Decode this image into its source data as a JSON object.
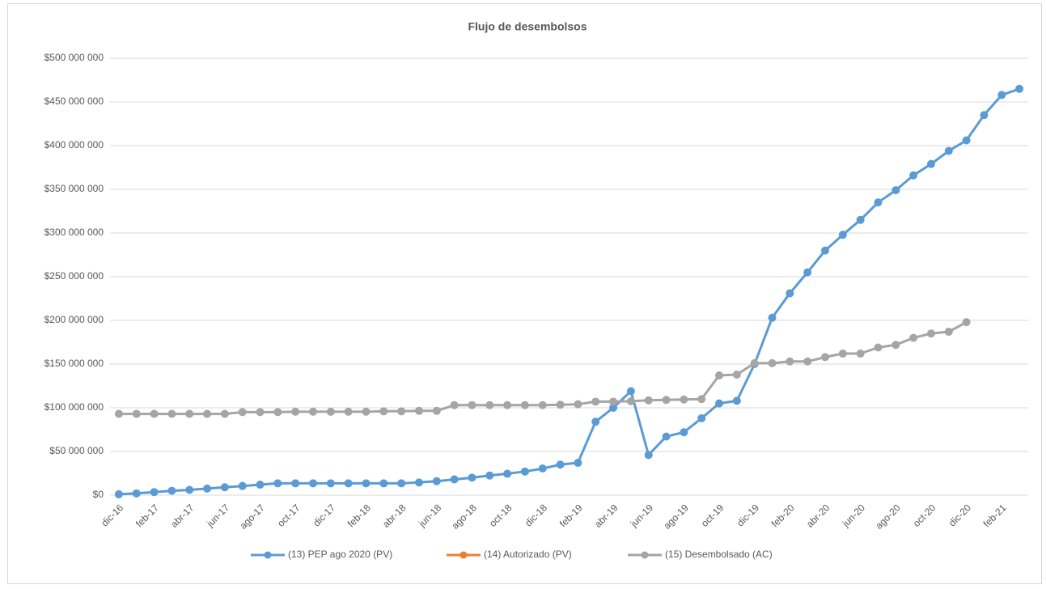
{
  "chart_data": {
    "type": "line",
    "title": "Flujo de desembolsos",
    "categories": [
      "dic-16",
      null,
      "feb-17",
      null,
      "abr-17",
      null,
      "jun-17",
      null,
      "ago-17",
      null,
      "oct-17",
      null,
      "dic-17",
      null,
      "feb-18",
      null,
      "abr-18",
      null,
      "jun-18",
      null,
      "ago-18",
      null,
      "oct-18",
      null,
      "dic-18",
      null,
      "feb-19",
      null,
      "abr-19",
      null,
      "jun-19",
      null,
      "ago-19",
      null,
      "oct-19",
      null,
      "dic-19",
      null,
      "feb-20",
      null,
      "abr-20",
      null,
      "jun-20",
      null,
      "ago-20",
      null,
      "oct-20",
      null,
      "dic-20",
      null,
      "feb-21",
      null
    ],
    "series": [
      {
        "name": "(13) PEP ago 2020 (PV)",
        "color": "#5b9bd5",
        "values": [
          1000000,
          2000000,
          3500000,
          5000000,
          6000000,
          7500000,
          9000000,
          10500000,
          12000000,
          13500000,
          13500000,
          13500000,
          13500000,
          13500000,
          13500000,
          13500000,
          13500000,
          14500000,
          16000000,
          18000000,
          20000000,
          22500000,
          24500000,
          27000000,
          30500000,
          35000000,
          37000000,
          84000000,
          100000000,
          119000000,
          46000000,
          67000000,
          72000000,
          88000000,
          105000000,
          108000000,
          150000000,
          203000000,
          231000000,
          255000000,
          280000000,
          298000000,
          315000000,
          335000000,
          349000000,
          366000000,
          379000000,
          394000000,
          406000000,
          435000000,
          458000000,
          465000000
        ]
      },
      {
        "name": "(14) Autorizado (PV)",
        "color": "#ed7d31",
        "values": [
          null,
          null,
          null,
          null,
          null,
          null,
          null,
          null,
          null,
          null,
          null,
          null,
          null,
          null,
          null,
          null,
          null,
          null,
          null,
          null,
          null,
          null,
          null,
          null,
          null,
          null,
          null,
          null,
          null,
          null,
          null,
          null,
          null,
          null,
          null,
          null,
          null,
          null,
          null,
          null,
          null,
          null,
          null,
          null,
          null,
          null,
          null,
          null,
          null,
          null,
          null,
          null
        ]
      },
      {
        "name": "(15) Desembolsado (AC)",
        "color": "#a5a5a5",
        "values": [
          93000000,
          93000000,
          93000000,
          93000000,
          93000000,
          93000000,
          93000000,
          95000000,
          95000000,
          95000000,
          95500000,
          95500000,
          95500000,
          95500000,
          95500000,
          96000000,
          96000000,
          96500000,
          96500000,
          103000000,
          103000000,
          103000000,
          103000000,
          103000000,
          103000000,
          103500000,
          104000000,
          107000000,
          107000000,
          107500000,
          108500000,
          109000000,
          109500000,
          110000000,
          137000000,
          138000000,
          151000000,
          151000000,
          153000000,
          153000000,
          158000000,
          162000000,
          162000000,
          169000000,
          172000000,
          180000000,
          185000000,
          187000000,
          198000000,
          null,
          null,
          null
        ]
      }
    ],
    "ylim": [
      0,
      500000000
    ],
    "yticks": [
      {
        "value": 0,
        "label": "$0"
      },
      {
        "value": 50000000,
        "label": "$50 000 000"
      },
      {
        "value": 100000000,
        "label": "$100 000 000"
      },
      {
        "value": 150000000,
        "label": "$150 000 000"
      },
      {
        "value": 200000000,
        "label": "$200 000 000"
      },
      {
        "value": 250000000,
        "label": "$250 000 000"
      },
      {
        "value": 300000000,
        "label": "$300 000 000"
      },
      {
        "value": 350000000,
        "label": "$350 000 000"
      },
      {
        "value": 400000000,
        "label": "$400 000 000"
      },
      {
        "value": 450000000,
        "label": "$450 000 000"
      },
      {
        "value": 500000000,
        "label": "$500 000 000"
      }
    ],
    "grid": true,
    "legend": "bottom"
  }
}
